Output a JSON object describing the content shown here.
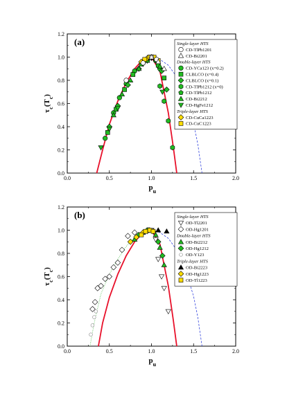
{
  "chart_data": [
    {
      "type": "scatter",
      "panel_label": "(a)",
      "xlabel": "p",
      "xlabel_sub": "u",
      "ylabel": "τ",
      "ylabel_sub": "c",
      "ylabel_tail": "(T",
      "ylabel_tail_sub": "c",
      "ylabel_end": ")",
      "xlim": [
        0,
        2.0
      ],
      "ylim": [
        0,
        1.2
      ],
      "xticks": [
        "0.0",
        "0.5",
        "1.0",
        "1.5",
        "2.0"
      ],
      "yticks": [
        "0.0",
        "0.2",
        "0.4",
        "0.6",
        "0.8",
        "1.0",
        "1.2"
      ],
      "grid": false,
      "legend_position": "top-right",
      "legend": [
        {
          "kind": "head",
          "label": "Single-layer HTS"
        },
        {
          "kind": "entry",
          "marker": "circle-open",
          "label": "CD-TlPb1201"
        },
        {
          "kind": "entry",
          "marker": "triangle-up-open",
          "label": "CD-Bi2201"
        },
        {
          "kind": "head",
          "label": "Double-layer HTS"
        },
        {
          "kind": "entry",
          "marker": "circle-green",
          "label": "CD-YCa123 (x=0.2)"
        },
        {
          "kind": "entry",
          "marker": "square-green",
          "label": "CLBLCO (x=0.4)"
        },
        {
          "kind": "entry",
          "marker": "diamond-green",
          "label": "CLBLCO (x=0.1)"
        },
        {
          "kind": "entry",
          "marker": "hexagon-green",
          "label": "CD-TlPb1212 (x=0)"
        },
        {
          "kind": "entry",
          "marker": "pentagon-green",
          "label": "CD-TlPb1212"
        },
        {
          "kind": "entry",
          "marker": "triangle-up-green",
          "label": "CD-Bi2212"
        },
        {
          "kind": "entry",
          "marker": "triangle-down-green",
          "label": "CD-HgFe1212"
        },
        {
          "kind": "head",
          "label": "Triple-layer HTS"
        },
        {
          "kind": "entry",
          "marker": "diamond-yellow",
          "label": "CD-CuCa1223"
        },
        {
          "kind": "entry",
          "marker": "square-yellow",
          "label": "CD-CuC1223"
        }
      ],
      "curves": [
        {
          "style": "solid-red",
          "x": [
            0.35,
            0.42,
            0.5,
            0.6,
            0.7,
            0.8,
            0.9,
            1.0,
            1.1,
            1.2,
            1.26,
            1.3
          ],
          "y": [
            0.0,
            0.2,
            0.42,
            0.62,
            0.78,
            0.9,
            0.98,
            1.0,
            0.88,
            0.52,
            0.22,
            0.0
          ]
        },
        {
          "style": "dashed-blue",
          "x": [
            1.0,
            1.1,
            1.2,
            1.3,
            1.4,
            1.5,
            1.55,
            1.6
          ],
          "y": [
            1.0,
            0.98,
            0.93,
            0.83,
            0.67,
            0.43,
            0.25,
            0.0
          ]
        }
      ],
      "points": [
        {
          "marker": "circle-green",
          "x": [
            0.45,
            0.55,
            0.62,
            0.7,
            0.8,
            0.9,
            0.95,
            1.0,
            1.05,
            1.1
          ],
          "y": [
            0.3,
            0.52,
            0.65,
            0.77,
            0.88,
            0.95,
            0.98,
            1.0,
            0.97,
            0.9
          ]
        },
        {
          "marker": "square-green",
          "x": [
            0.48,
            0.58,
            0.68,
            0.78,
            0.88,
            0.98,
            1.08,
            1.15
          ],
          "y": [
            0.35,
            0.55,
            0.72,
            0.85,
            0.94,
            1.0,
            0.93,
            0.82
          ]
        },
        {
          "marker": "diamond-green",
          "x": [
            0.5,
            0.6,
            0.72,
            0.85,
            0.95,
            1.05,
            1.12,
            1.18
          ],
          "y": [
            0.4,
            0.58,
            0.76,
            0.9,
            0.97,
            0.98,
            0.88,
            0.72
          ]
        },
        {
          "marker": "hexagon-green",
          "x": [
            1.1,
            1.15,
            1.2,
            1.25
          ],
          "y": [
            0.75,
            0.62,
            0.45,
            0.22
          ]
        },
        {
          "marker": "triangle-up-green",
          "x": [
            0.55,
            0.65,
            0.75,
            0.85,
            0.95,
            1.02,
            1.1
          ],
          "y": [
            0.5,
            0.68,
            0.8,
            0.9,
            0.97,
            1.0,
            0.92
          ]
        },
        {
          "marker": "triangle-down-green",
          "x": [
            0.4,
            0.5,
            0.6,
            0.9,
            1.0,
            1.13
          ],
          "y": [
            0.22,
            0.38,
            0.56,
            0.94,
            0.99,
            0.7
          ]
        },
        {
          "marker": "diamond-yellow",
          "x": [
            0.88,
            0.95,
            1.0,
            1.04
          ],
          "y": [
            0.96,
            0.99,
            1.0,
            0.99
          ]
        },
        {
          "marker": "square-yellow",
          "x": [
            0.92,
            0.98,
            1.03,
            1.08
          ],
          "y": [
            0.98,
            1.0,
            1.0,
            0.97
          ]
        },
        {
          "marker": "circle-open",
          "x": [
            0.7,
            0.9,
            1.0,
            1.06
          ],
          "y": [
            0.8,
            0.95,
            1.0,
            0.98
          ]
        },
        {
          "marker": "triangle-up-open",
          "x": [
            1.0,
            1.08,
            1.15
          ],
          "y": [
            1.0,
            0.96,
            0.9
          ]
        }
      ]
    },
    {
      "type": "scatter",
      "panel_label": "(b)",
      "xlabel": "p",
      "xlabel_sub": "u",
      "ylabel": "τ",
      "ylabel_sub": "c",
      "ylabel_tail": "(T",
      "ylabel_tail_sub": "c",
      "ylabel_end": ")",
      "xlim": [
        0,
        2.0
      ],
      "ylim": [
        0,
        1.2
      ],
      "xticks": [
        "0.0",
        "0.5",
        "1.0",
        "1.5",
        "2.0"
      ],
      "yticks": [
        "0.0",
        "0.2",
        "0.4",
        "0.6",
        "0.8",
        "1.0",
        "1.2"
      ],
      "grid": false,
      "legend_position": "top-right",
      "legend": [
        {
          "kind": "head",
          "label": "Single-layer HTS"
        },
        {
          "kind": "entry",
          "marker": "triangle-down-open",
          "label": "OD-Tl2201"
        },
        {
          "kind": "entry",
          "marker": "diamond-open",
          "label": "OD-Hg1201"
        },
        {
          "kind": "head",
          "label": "Double-layer HTS"
        },
        {
          "kind": "entry",
          "marker": "triangle-up-green",
          "label": "OD-Bi2212"
        },
        {
          "kind": "entry",
          "marker": "diamond-green",
          "label": "OD-Hg1212"
        },
        {
          "kind": "entry",
          "marker": "dot-open",
          "label": "OD-Y123"
        },
        {
          "kind": "head",
          "label": "Triple-layer HTS"
        },
        {
          "kind": "entry",
          "marker": "triangle-up-black",
          "label": "OD-Bi2223"
        },
        {
          "kind": "entry",
          "marker": "diamond-yellow",
          "label": "OD-Hg1223"
        },
        {
          "kind": "entry",
          "marker": "square-yellow",
          "label": "OD-Tl1223"
        }
      ],
      "curves": [
        {
          "style": "solid-red",
          "x": [
            0.37,
            0.42,
            0.5,
            0.6,
            0.7,
            0.8,
            0.9,
            1.0,
            1.1,
            1.2,
            1.26,
            1.3
          ],
          "y": [
            0.0,
            0.2,
            0.42,
            0.62,
            0.78,
            0.9,
            0.98,
            1.0,
            0.88,
            0.52,
            0.22,
            0.0
          ]
        },
        {
          "style": "dashed-blue",
          "x": [
            1.0,
            1.1,
            1.2,
            1.3,
            1.4,
            1.5,
            1.55,
            1.6
          ],
          "y": [
            1.0,
            0.98,
            0.93,
            0.83,
            0.67,
            0.43,
            0.25,
            0.0
          ]
        },
        {
          "style": "dotted-green",
          "x": [
            0.27,
            0.32,
            0.4,
            0.5,
            0.6,
            0.7,
            0.8,
            0.9,
            1.0
          ],
          "y": [
            0.0,
            0.2,
            0.45,
            0.62,
            0.75,
            0.86,
            0.94,
            0.99,
            1.0
          ]
        }
      ],
      "points": [
        {
          "marker": "diamond-open",
          "x": [
            0.3,
            0.33,
            0.36,
            0.4,
            0.45,
            0.5,
            0.55,
            0.6,
            0.65,
            0.72,
            0.8
          ],
          "y": [
            0.32,
            0.38,
            0.5,
            0.52,
            0.58,
            0.6,
            0.68,
            0.72,
            0.83,
            0.95,
            0.98
          ]
        },
        {
          "marker": "dot-open",
          "x": [
            0.28,
            0.3,
            0.32,
            0.34
          ],
          "y": [
            0.1,
            0.18,
            0.25,
            0.3
          ]
        },
        {
          "marker": "triangle-down-open",
          "x": [
            0.95,
            1.0,
            1.05,
            1.08,
            1.12,
            1.15,
            1.2
          ],
          "y": [
            0.99,
            1.0,
            0.92,
            0.75,
            0.6,
            0.5,
            0.3
          ]
        },
        {
          "marker": "triangle-up-green",
          "x": [
            0.8,
            0.9,
            0.98,
            1.05,
            1.1,
            1.15
          ],
          "y": [
            0.92,
            0.98,
            1.0,
            0.96,
            0.85,
            0.7
          ]
        },
        {
          "marker": "diamond-green",
          "x": [
            0.85,
            0.95,
            1.02,
            1.08,
            1.13
          ],
          "y": [
            0.96,
            1.0,
            0.99,
            0.9,
            0.78
          ]
        },
        {
          "marker": "triangle-up-black",
          "x": [
            1.08,
            1.18
          ],
          "y": [
            1.0,
            0.99
          ]
        },
        {
          "marker": "diamond-yellow",
          "x": [
            0.75,
            0.82,
            0.9,
            0.97
          ],
          "y": [
            0.9,
            0.94,
            0.98,
            1.0
          ]
        },
        {
          "marker": "square-yellow",
          "x": [
            0.88,
            0.93,
            0.98,
            1.02
          ],
          "y": [
            0.96,
            0.99,
            1.0,
            0.99
          ]
        }
      ]
    }
  ]
}
